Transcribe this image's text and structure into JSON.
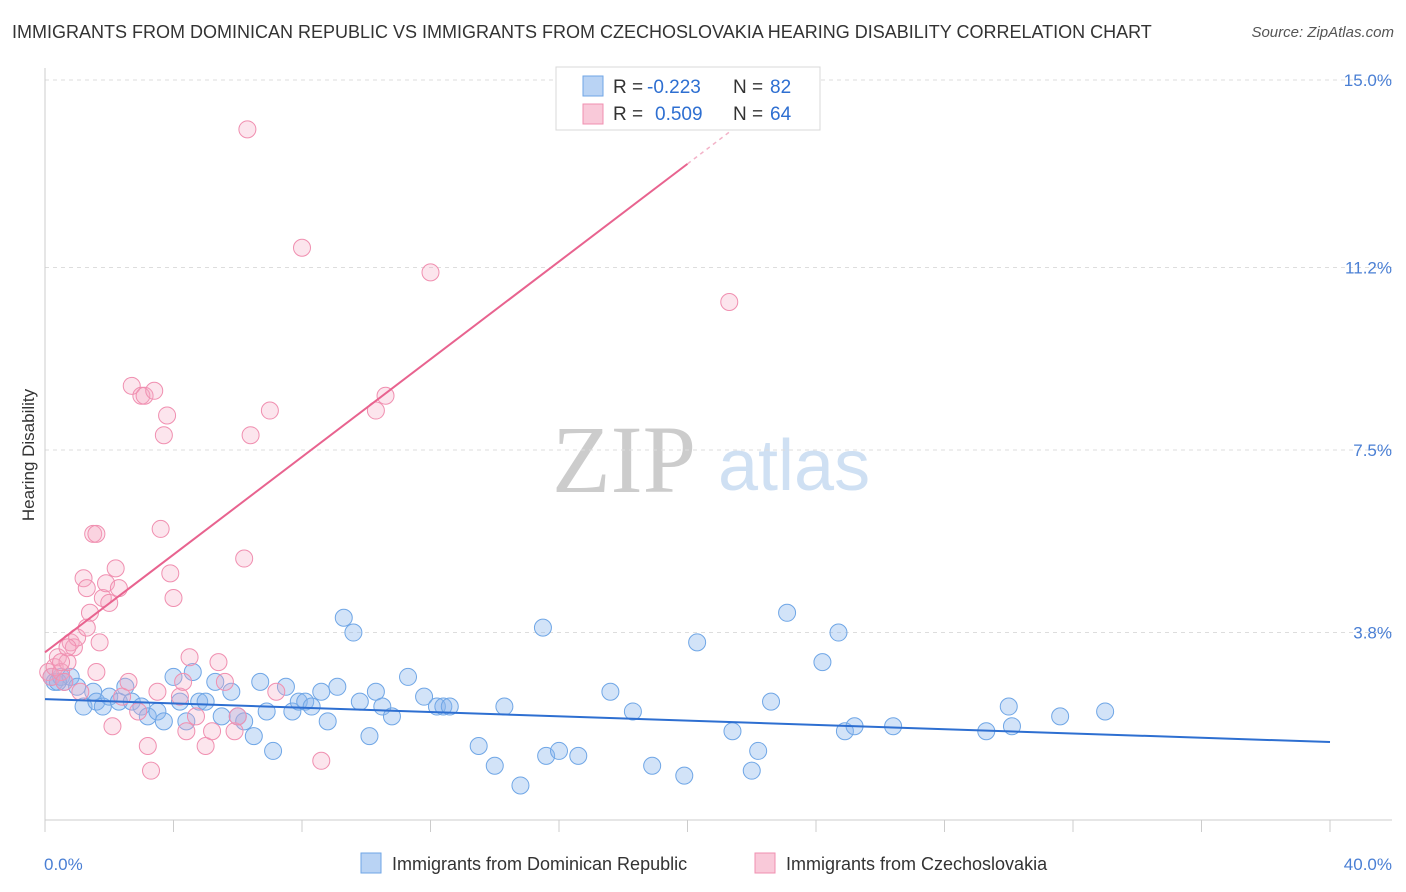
{
  "title": "IMMIGRANTS FROM DOMINICAN REPUBLIC VS IMMIGRANTS FROM CZECHOSLOVAKIA HEARING DISABILITY CORRELATION CHART",
  "source": "Source: ZipAtlas.com",
  "watermark": {
    "left": "ZIP",
    "right": "atlas"
  },
  "colors": {
    "blue": "#6fa6e6",
    "blue_line": "#2e6fd1",
    "pink": "#f08fb0",
    "pink_line": "#e8638f"
  },
  "legend": {
    "r_label": "R =",
    "n_label": "N =",
    "rows": [
      {
        "r": "-0.223",
        "n": "82"
      },
      {
        "r": "0.509",
        "n": "64"
      }
    ]
  },
  "bottom_legend": [
    "Immigrants from Dominican Republic",
    "Immigrants from Czechoslovakia"
  ],
  "chart_data": {
    "type": "scatter",
    "ylabel": "Hearing Disability",
    "xlim": [
      0,
      40
    ],
    "ylim": [
      0,
      15
    ],
    "x_tick_labels": [
      "0.0%",
      "40.0%"
    ],
    "y_ticks": [
      3.8,
      7.5,
      11.2,
      15.0
    ],
    "y_tick_labels": [
      "3.8%",
      "7.5%",
      "11.2%",
      "15.0%"
    ],
    "grid": "horizontal dashed",
    "series": [
      {
        "name": "Immigrants from Dominican Republic",
        "trend": {
          "x": [
            0,
            40
          ],
          "y": [
            2.45,
            1.58
          ]
        },
        "points": [
          [
            0.2,
            2.9
          ],
          [
            0.3,
            2.8
          ],
          [
            0.5,
            2.9
          ],
          [
            0.6,
            2.8
          ],
          [
            0.8,
            2.9
          ],
          [
            1.0,
            2.7
          ],
          [
            1.2,
            2.3
          ],
          [
            1.5,
            2.6
          ],
          [
            1.6,
            2.4
          ],
          [
            1.8,
            2.3
          ],
          [
            2.0,
            2.5
          ],
          [
            2.3,
            2.4
          ],
          [
            2.5,
            2.7
          ],
          [
            2.7,
            2.4
          ],
          [
            3.0,
            2.3
          ],
          [
            3.2,
            2.1
          ],
          [
            3.5,
            2.2
          ],
          [
            3.7,
            2.0
          ],
          [
            4.0,
            2.9
          ],
          [
            4.2,
            2.4
          ],
          [
            4.4,
            2.0
          ],
          [
            4.6,
            3.0
          ],
          [
            4.8,
            2.4
          ],
          [
            5.0,
            2.4
          ],
          [
            5.3,
            2.8
          ],
          [
            5.5,
            2.1
          ],
          [
            5.8,
            2.6
          ],
          [
            6.0,
            2.1
          ],
          [
            6.2,
            2.0
          ],
          [
            6.5,
            1.7
          ],
          [
            6.7,
            2.8
          ],
          [
            6.9,
            2.2
          ],
          [
            7.1,
            1.4
          ],
          [
            7.5,
            2.7
          ],
          [
            7.7,
            2.2
          ],
          [
            7.9,
            2.4
          ],
          [
            8.1,
            2.4
          ],
          [
            8.3,
            2.3
          ],
          [
            8.6,
            2.6
          ],
          [
            8.8,
            2.0
          ],
          [
            9.1,
            2.7
          ],
          [
            9.3,
            4.1
          ],
          [
            9.6,
            3.8
          ],
          [
            9.8,
            2.4
          ],
          [
            10.1,
            1.7
          ],
          [
            10.3,
            2.6
          ],
          [
            10.5,
            2.3
          ],
          [
            10.8,
            2.1
          ],
          [
            11.3,
            2.9
          ],
          [
            11.8,
            2.5
          ],
          [
            12.2,
            2.3
          ],
          [
            12.4,
            2.3
          ],
          [
            12.6,
            2.3
          ],
          [
            13.5,
            1.5
          ],
          [
            14.0,
            1.1
          ],
          [
            14.3,
            2.3
          ],
          [
            14.8,
            0.7
          ],
          [
            15.5,
            3.9
          ],
          [
            15.6,
            1.3
          ],
          [
            16.0,
            1.4
          ],
          [
            16.6,
            1.3
          ],
          [
            17.6,
            2.6
          ],
          [
            18.3,
            2.2
          ],
          [
            18.9,
            1.1
          ],
          [
            19.9,
            0.9
          ],
          [
            20.3,
            3.6
          ],
          [
            21.4,
            1.8
          ],
          [
            22.0,
            1.0
          ],
          [
            22.2,
            1.4
          ],
          [
            22.6,
            2.4
          ],
          [
            23.1,
            4.2
          ],
          [
            24.2,
            3.2
          ],
          [
            24.9,
            1.8
          ],
          [
            25.2,
            1.9
          ],
          [
            24.7,
            3.8
          ],
          [
            26.4,
            1.9
          ],
          [
            29.3,
            1.8
          ],
          [
            30.1,
            1.9
          ],
          [
            30.0,
            2.3
          ],
          [
            31.6,
            2.1
          ],
          [
            33.0,
            2.2
          ],
          [
            0.4,
            2.8
          ]
        ]
      },
      {
        "name": "Immigrants from Czechoslovakia",
        "trend": {
          "x": [
            0,
            20
          ],
          "y": [
            3.4,
            13.3
          ]
        },
        "points": [
          [
            0.1,
            3.0
          ],
          [
            0.2,
            2.9
          ],
          [
            0.3,
            3.1
          ],
          [
            0.4,
            3.3
          ],
          [
            0.5,
            3.0
          ],
          [
            0.6,
            2.8
          ],
          [
            0.7,
            3.2
          ],
          [
            0.8,
            3.6
          ],
          [
            0.9,
            3.5
          ],
          [
            1.0,
            3.7
          ],
          [
            1.1,
            2.6
          ],
          [
            1.2,
            4.9
          ],
          [
            1.3,
            4.7
          ],
          [
            1.4,
            4.2
          ],
          [
            1.5,
            5.8
          ],
          [
            1.6,
            5.8
          ],
          [
            1.7,
            3.6
          ],
          [
            1.8,
            4.5
          ],
          [
            1.9,
            4.8
          ],
          [
            2.0,
            4.4
          ],
          [
            2.2,
            5.1
          ],
          [
            2.3,
            4.7
          ],
          [
            2.1,
            1.9
          ],
          [
            2.4,
            2.5
          ],
          [
            2.6,
            2.8
          ],
          [
            2.7,
            8.8
          ],
          [
            2.9,
            2.2
          ],
          [
            3.0,
            8.6
          ],
          [
            3.1,
            8.6
          ],
          [
            3.2,
            1.5
          ],
          [
            3.3,
            1.0
          ],
          [
            3.4,
            8.7
          ],
          [
            3.5,
            2.6
          ],
          [
            3.6,
            5.9
          ],
          [
            3.7,
            7.8
          ],
          [
            3.8,
            8.2
          ],
          [
            3.9,
            5.0
          ],
          [
            4.0,
            4.5
          ],
          [
            4.2,
            2.5
          ],
          [
            4.3,
            2.8
          ],
          [
            4.4,
            1.8
          ],
          [
            4.5,
            3.3
          ],
          [
            4.7,
            2.1
          ],
          [
            5.0,
            1.5
          ],
          [
            5.2,
            1.8
          ],
          [
            5.4,
            3.2
          ],
          [
            5.6,
            2.8
          ],
          [
            5.9,
            1.8
          ],
          [
            6.0,
            2.1
          ],
          [
            6.2,
            5.3
          ],
          [
            6.3,
            14.0
          ],
          [
            6.4,
            7.8
          ],
          [
            7.0,
            8.3
          ],
          [
            7.2,
            2.6
          ],
          [
            8.0,
            11.6
          ],
          [
            8.6,
            1.2
          ],
          [
            10.3,
            8.3
          ],
          [
            10.6,
            8.6
          ],
          [
            12.0,
            11.1
          ],
          [
            21.3,
            10.5
          ],
          [
            0.5,
            3.2
          ],
          [
            0.7,
            3.5
          ],
          [
            1.3,
            3.9
          ],
          [
            1.6,
            3.0
          ]
        ]
      }
    ]
  }
}
